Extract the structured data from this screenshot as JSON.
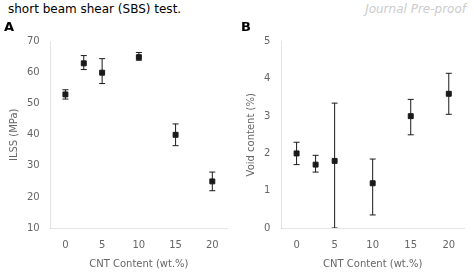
{
  "chart_data": [
    {
      "type": "scatter",
      "title": "A",
      "annotations": [
        "short beam shear (SBS) test.",
        "Journal Pre-proof"
      ],
      "x": [
        0,
        2.5,
        5,
        10,
        15,
        20
      ],
      "values": [
        53,
        63,
        60,
        65,
        40,
        25
      ],
      "error_low": [
        1.5,
        2.0,
        3.5,
        1.0,
        3.5,
        3.0
      ],
      "error_high": [
        1.5,
        2.5,
        4.5,
        1.5,
        3.5,
        3.0
      ],
      "xlabel": "CNT Content (wt.%)",
      "ylabel": "ILSS (MPa)",
      "xlim": [
        -2,
        22
      ],
      "xticks": [
        0,
        5,
        10,
        15,
        20
      ],
      "ylim": [
        10,
        70
      ],
      "yticks": [
        10,
        20,
        30,
        40,
        50,
        60,
        70
      ],
      "marker": "square",
      "color": "#1a1a1a",
      "grid": false
    },
    {
      "type": "scatter",
      "title": "B",
      "x": [
        0,
        2.5,
        5,
        10,
        15,
        20
      ],
      "values": [
        2.0,
        1.7,
        1.8,
        1.2,
        3.0,
        3.6
      ],
      "error_low": [
        0.3,
        0.2,
        1.8,
        0.85,
        0.5,
        0.55
      ],
      "error_high": [
        0.3,
        0.25,
        1.55,
        0.65,
        0.45,
        0.55
      ],
      "xlabel": "CNT Content (wt.%)",
      "ylabel": "Void content (%)",
      "xlim": [
        -2,
        22
      ],
      "xticks": [
        0,
        5,
        10,
        15,
        20
      ],
      "ylim": [
        0,
        5
      ],
      "yticks": [
        0,
        1,
        2,
        3,
        4,
        5
      ],
      "marker": "square",
      "color": "#1a1a1a",
      "grid": false
    }
  ]
}
